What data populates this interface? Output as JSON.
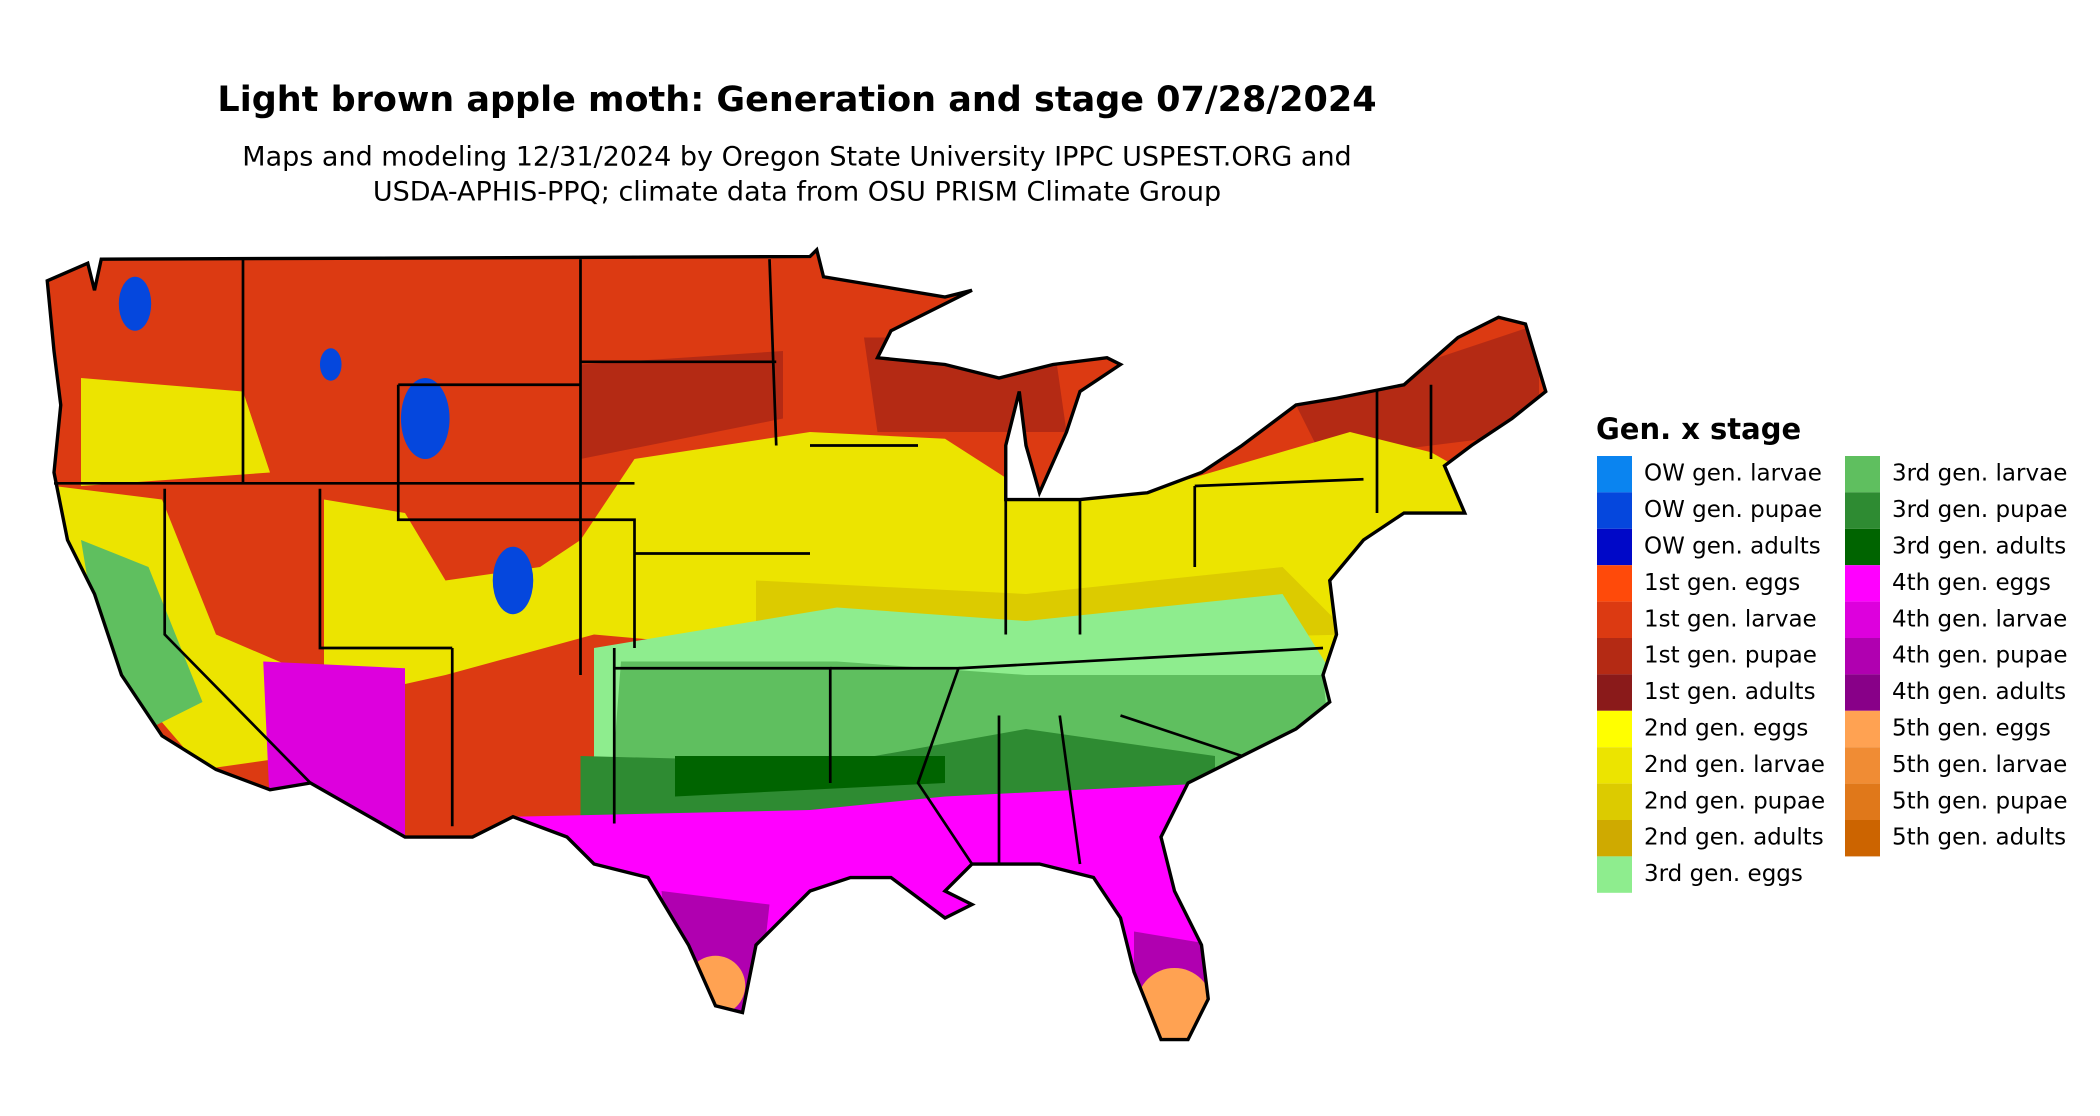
{
  "title": "Light brown apple moth: Generation and stage 07/28/2024",
  "subtitle_lines": [
    "Maps and modeling 12/31/2024 by Oregon State University IPPC USPEST.ORG and",
    "USDA-APHIS-PPQ; climate data from OSU PRISM Climate Group"
  ],
  "legend": {
    "title": "Gen. x stage",
    "items": [
      {
        "label": "OW gen. larvae",
        "color": "#0a84f0"
      },
      {
        "label": "OW gen. pupae",
        "color": "#0547dd"
      },
      {
        "label": "OW gen. adults",
        "color": "#0008c8"
      },
      {
        "label": "1st gen. eggs",
        "color": "#ff4a0a"
      },
      {
        "label": "1st gen. larvae",
        "color": "#dc3a12"
      },
      {
        "label": "1st gen. pupae",
        "color": "#b42a14"
      },
      {
        "label": "1st gen. adults",
        "color": "#8a1a1a"
      },
      {
        "label": "2nd gen. eggs",
        "color": "#ffff00"
      },
      {
        "label": "2nd gen. larvae",
        "color": "#ece400"
      },
      {
        "label": "2nd gen. pupae",
        "color": "#dccb00"
      },
      {
        "label": "2nd gen. adults",
        "color": "#cfaa00"
      },
      {
        "label": "3rd gen. eggs",
        "color": "#8eed8e"
      },
      {
        "label": "3rd gen. larvae",
        "color": "#5fbf5f"
      },
      {
        "label": "3rd gen. pupae",
        "color": "#2e8b32"
      },
      {
        "label": "3rd gen. adults",
        "color": "#006400"
      },
      {
        "label": "4th gen. eggs",
        "color": "#ff00ff"
      },
      {
        "label": "4th gen. larvae",
        "color": "#dd00dd"
      },
      {
        "label": "4th gen. pupae",
        "color": "#b000b0"
      },
      {
        "label": "4th gen. adults",
        "color": "#880088"
      },
      {
        "label": "5th gen. eggs",
        "color": "#ffa252"
      },
      {
        "label": "5th gen. larvae",
        "color": "#f08c34"
      },
      {
        "label": "5th gen. pupae",
        "color": "#e0781a"
      },
      {
        "label": "5th gen. adults",
        "color": "#cc6400"
      }
    ]
  }
}
